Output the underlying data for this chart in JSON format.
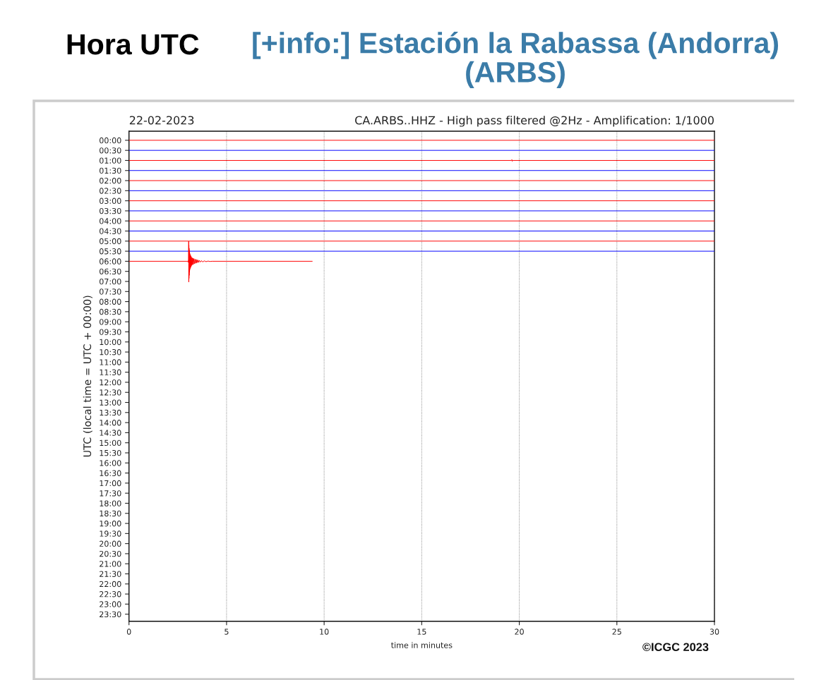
{
  "chart_data": {
    "type": "line",
    "title": "Hora UTC",
    "subtitle": "[+info:] Estación la Rabassa (Andorra) (ARBS)",
    "annotations": [
      "22-02-2023",
      "CA.ARBS..HHZ - High pass filtered @2Hz - Amplification: 1/1000",
      "©ICGC 2023"
    ],
    "xlabel": "time in minutes",
    "ylabel": "UTC (local time = UTC + 00:00)",
    "xlim": [
      0,
      30
    ],
    "xticks": [
      0,
      5,
      10,
      15,
      20,
      25,
      30
    ],
    "ylim": [
      23.85,
      -0.45
    ],
    "yticks": [
      {
        "value": 0,
        "label": "00:00"
      },
      {
        "value": 0.5,
        "label": "00:30"
      },
      {
        "value": 1,
        "label": "01:00"
      },
      {
        "value": 1.5,
        "label": "01:30"
      },
      {
        "value": 2,
        "label": "02:00"
      },
      {
        "value": 2.5,
        "label": "02:30"
      },
      {
        "value": 3,
        "label": "03:00"
      },
      {
        "value": 3.5,
        "label": "03:30"
      },
      {
        "value": 4,
        "label": "04:00"
      },
      {
        "value": 4.5,
        "label": "04:30"
      },
      {
        "value": 5,
        "label": "05:00"
      },
      {
        "value": 5.5,
        "label": "05:30"
      },
      {
        "value": 6,
        "label": "06:00"
      },
      {
        "value": 6.5,
        "label": "06:30"
      },
      {
        "value": 7,
        "label": "07:00"
      },
      {
        "value": 7.5,
        "label": "07:30"
      },
      {
        "value": 8,
        "label": "08:00"
      },
      {
        "value": 8.5,
        "label": "08:30"
      },
      {
        "value": 9,
        "label": "09:00"
      },
      {
        "value": 9.5,
        "label": "09:30"
      },
      {
        "value": 10,
        "label": "10:00"
      },
      {
        "value": 10.5,
        "label": "10:30"
      },
      {
        "value": 11,
        "label": "11:00"
      },
      {
        "value": 11.5,
        "label": "11:30"
      },
      {
        "value": 12,
        "label": "12:00"
      },
      {
        "value": 12.5,
        "label": "12:30"
      },
      {
        "value": 13,
        "label": "13:00"
      },
      {
        "value": 13.5,
        "label": "13:30"
      },
      {
        "value": 14,
        "label": "14:00"
      },
      {
        "value": 14.5,
        "label": "14:30"
      },
      {
        "value": 15,
        "label": "15:00"
      },
      {
        "value": 15.5,
        "label": "15:30"
      },
      {
        "value": 16,
        "label": "16:00"
      },
      {
        "value": 16.5,
        "label": "16:30"
      },
      {
        "value": 17,
        "label": "17:00"
      },
      {
        "value": 17.5,
        "label": "17:30"
      },
      {
        "value": 18,
        "label": "18:00"
      },
      {
        "value": 18.5,
        "label": "18:30"
      },
      {
        "value": 19,
        "label": "19:00"
      },
      {
        "value": 19.5,
        "label": "19:30"
      },
      {
        "value": 20,
        "label": "20:00"
      },
      {
        "value": 20.5,
        "label": "20:30"
      },
      {
        "value": 21,
        "label": "21:00"
      },
      {
        "value": 21.5,
        "label": "21:30"
      },
      {
        "value": 22,
        "label": "22:00"
      },
      {
        "value": 22.5,
        "label": "22:30"
      },
      {
        "value": 23,
        "label": "23:00"
      },
      {
        "value": 23.5,
        "label": "23:30"
      }
    ],
    "grid": "x",
    "series": [
      {
        "color": "#ff0000",
        "x": [
          0,
          30
        ],
        "values": [
          0,
          0
        ]
      },
      {
        "color": "#0000ff",
        "x": [
          0,
          30
        ],
        "values": [
          0.5,
          0.5
        ]
      },
      {
        "color": "#ff0000",
        "x": [
          0,
          19.6,
          19.62,
          19.64,
          19.66,
          30
        ],
        "values": [
          1,
          1,
          0.96,
          1.04,
          1,
          1
        ]
      },
      {
        "color": "#0000ff",
        "x": [
          0,
          30
        ],
        "values": [
          1.5,
          1.5
        ]
      },
      {
        "color": "#ff0000",
        "x": [
          0,
          30
        ],
        "values": [
          2,
          2
        ]
      },
      {
        "color": "#0000ff",
        "x": [
          0,
          30
        ],
        "values": [
          2.5,
          2.5
        ]
      },
      {
        "color": "#ff0000",
        "x": [
          0,
          30
        ],
        "values": [
          3,
          3
        ]
      },
      {
        "color": "#0000ff",
        "x": [
          0,
          30
        ],
        "values": [
          3.5,
          3.5
        ]
      },
      {
        "color": "#ff0000",
        "x": [
          0,
          30
        ],
        "values": [
          4,
          4
        ]
      },
      {
        "color": "#0000ff",
        "x": [
          0,
          30
        ],
        "values": [
          4.5,
          4.5
        ]
      },
      {
        "color": "#ff0000",
        "x": [
          0,
          30
        ],
        "values": [
          5,
          5
        ]
      },
      {
        "color": "#0000ff",
        "x": [
          0,
          30
        ],
        "values": [
          5.5,
          5.5
        ]
      },
      {
        "color": "#ff0000",
        "x": [
          0,
          3.0,
          3.03,
          3.05,
          3.06,
          3.065,
          3.07,
          3.075,
          3.08,
          3.085,
          3.09,
          3.095,
          3.1,
          3.11,
          3.12,
          3.13,
          3.14,
          3.15,
          3.16,
          3.17,
          3.18,
          3.19,
          3.2,
          3.22,
          3.24,
          3.26,
          3.28,
          3.3,
          3.33,
          3.36,
          3.39,
          3.42,
          3.45,
          3.48,
          3.52,
          3.56,
          3.6,
          3.65,
          3.7,
          3.78,
          3.86,
          3.95,
          4.05,
          4.15,
          4.25,
          9.39
        ],
        "values": [
          6,
          6,
          6.05,
          5.9,
          5.01,
          7.03,
          5.2,
          6.85,
          5.35,
          6.7,
          5.45,
          6.55,
          5.55,
          6.45,
          5.62,
          6.38,
          5.68,
          6.32,
          5.72,
          6.28,
          5.76,
          6.24,
          5.8,
          6.2,
          5.83,
          6.17,
          5.85,
          6.15,
          5.87,
          6.12,
          5.9,
          6.1,
          5.91,
          6.08,
          5.93,
          6.06,
          5.95,
          6.04,
          5.97,
          6.03,
          5.98,
          6.02,
          5.99,
          6.01,
          6,
          6
        ]
      }
    ]
  }
}
